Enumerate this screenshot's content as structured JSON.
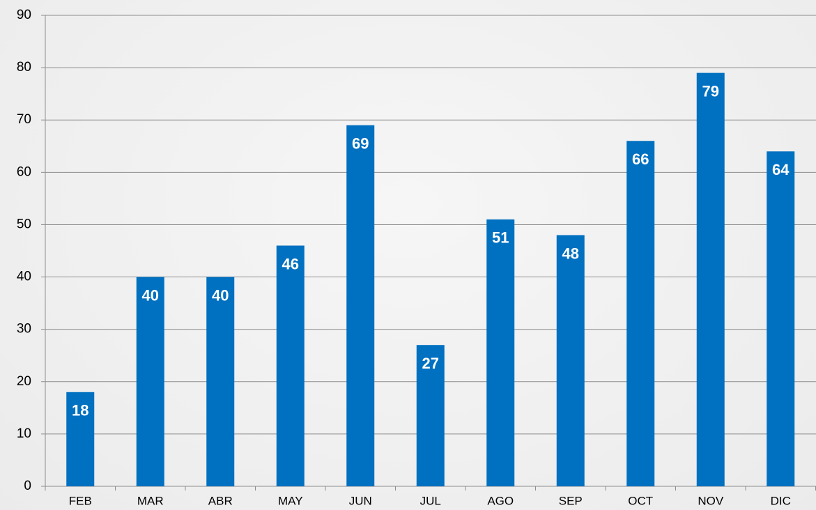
{
  "chart_data": {
    "type": "bar",
    "categories": [
      "FEB",
      "MAR",
      "ABR",
      "MAY",
      "JUN",
      "JUL",
      "AGO",
      "SEP",
      "OCT",
      "NOV",
      "DIC"
    ],
    "values": [
      18,
      40,
      40,
      46,
      69,
      27,
      51,
      48,
      66,
      79,
      64
    ],
    "color": "#0070c0",
    "ylim": [
      0,
      90
    ],
    "yticks": [
      0,
      10,
      20,
      30,
      40,
      50,
      60,
      70,
      80,
      90
    ],
    "grid": true,
    "data_labels": true
  }
}
